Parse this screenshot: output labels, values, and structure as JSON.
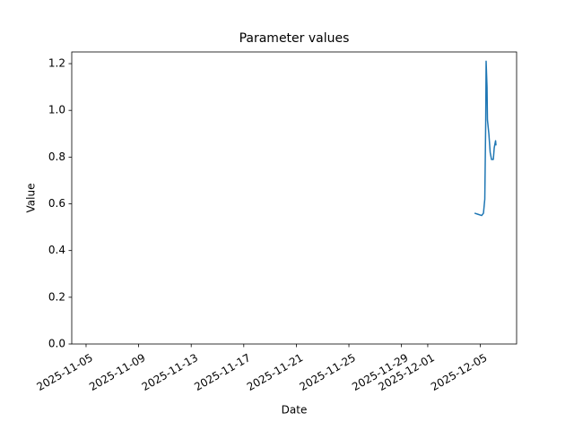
{
  "chart_data": {
    "type": "line",
    "title": "Parameter values",
    "x_label": "Date",
    "y_label": "Value",
    "x": [
      "2025-12-04 13:30",
      "2025-12-04 20:00",
      "2025-12-05 02:30",
      "2025-12-05 05:45",
      "2025-12-05 08:10",
      "2025-12-05 09:50",
      "2025-12-05 10:35",
      "2025-12-05 12:15",
      "2025-12-05 13:00",
      "2025-12-05 15:35",
      "2025-12-05 18:00",
      "2025-12-05 20:25",
      "2025-12-05 23:45",
      "2025-12-06 01:25",
      "2025-12-06 03:50",
      "2025-12-06 04:35"
    ],
    "series": [
      {
        "color": "#1f77b4",
        "values": [
          0.56,
          0.555,
          0.55,
          0.56,
          0.62,
          0.95,
          1.21,
          1.1,
          0.96,
          0.9,
          0.82,
          0.79,
          0.79,
          0.84,
          0.87,
          0.85
        ]
      }
    ],
    "xlim": [
      "2025-11-03 21:50",
      "2025-12-07 18:15"
    ],
    "xticks": [
      "2025-11-05",
      "2025-11-09",
      "2025-11-13",
      "2025-11-17",
      "2025-11-21",
      "2025-11-25",
      "2025-11-29",
      "2025-12-01",
      "2025-12-05"
    ],
    "ylim": [
      0,
      1.25
    ],
    "yticks": [
      {
        "value": 0,
        "label": "0.0"
      },
      0.2,
      0.4,
      0.6,
      0.8,
      {
        "value": 1,
        "label": "1.0"
      },
      1.2
    ],
    "grid": false
  }
}
